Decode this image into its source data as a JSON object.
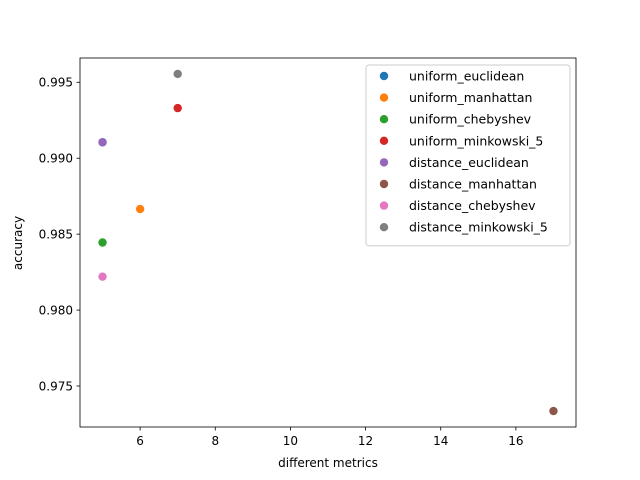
{
  "chart_data": {
    "type": "scatter",
    "xlabel": "different metrics",
    "ylabel": "accuracy",
    "xlim": [
      4.4,
      17.6
    ],
    "ylim": [
      0.9723,
      0.9966
    ],
    "xticks": [
      6,
      8,
      10,
      12,
      14,
      16
    ],
    "yticks": [
      0.975,
      0.98,
      0.985,
      0.99,
      0.995
    ],
    "grid": false,
    "legend_position": "top-right",
    "series": [
      {
        "name": "uniform_euclidean",
        "color": "#1f77b4",
        "points": [
          {
            "x": 5,
            "y": 0.99105
          }
        ]
      },
      {
        "name": "uniform_manhattan",
        "color": "#ff7f0e",
        "points": [
          {
            "x": 6,
            "y": 0.98665
          }
        ]
      },
      {
        "name": "uniform_chebyshev",
        "color": "#2ca02c",
        "points": [
          {
            "x": 5,
            "y": 0.98445
          }
        ]
      },
      {
        "name": "uniform_minkowski_5",
        "color": "#d62728",
        "points": [
          {
            "x": 7,
            "y": 0.9933
          }
        ]
      },
      {
        "name": "distance_euclidean",
        "color": "#9467bd",
        "points": [
          {
            "x": 5,
            "y": 0.99105
          }
        ]
      },
      {
        "name": "distance_manhattan",
        "color": "#8c564b",
        "points": [
          {
            "x": 17,
            "y": 0.97335
          }
        ]
      },
      {
        "name": "distance_chebyshev",
        "color": "#e377c2",
        "points": [
          {
            "x": 5,
            "y": 0.9822
          }
        ]
      },
      {
        "name": "distance_minkowski_5",
        "color": "#7f7f7f",
        "points": [
          {
            "x": 7,
            "y": 0.99555
          }
        ]
      }
    ]
  }
}
